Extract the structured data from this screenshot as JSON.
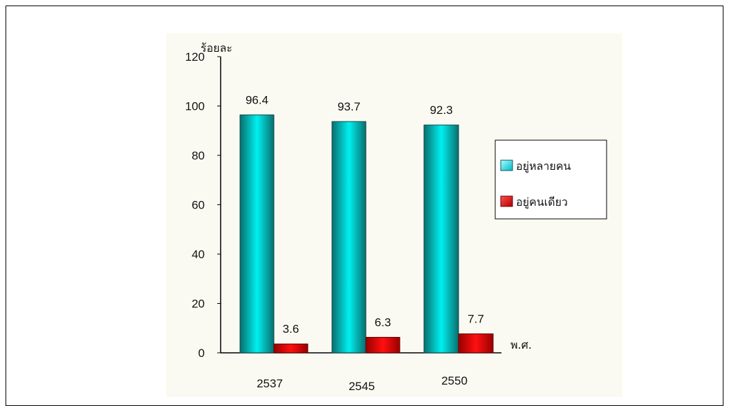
{
  "chart_data": {
    "type": "bar",
    "ylabel": "ร้อยละ",
    "xlabel": "พ.ศ.",
    "categories": [
      "2537",
      "2545",
      "2550"
    ],
    "ylim": [
      0,
      120
    ],
    "yticks": [
      0,
      20,
      40,
      60,
      80,
      100,
      120
    ],
    "series": [
      {
        "name": "อยู่หลายคน",
        "values": [
          96.4,
          93.7,
          92.3
        ],
        "color": "#00e5e5"
      },
      {
        "name": "อยู่คนเดียว",
        "values": [
          3.6,
          6.3,
          7.7
        ],
        "color": "#dd0000"
      }
    ],
    "value_labels": {
      "series0": [
        "96.4",
        "93.7",
        "92.3"
      ],
      "series1": [
        "3.6",
        "6.3",
        "7.7"
      ]
    },
    "legend_position": "right",
    "grid": false
  }
}
